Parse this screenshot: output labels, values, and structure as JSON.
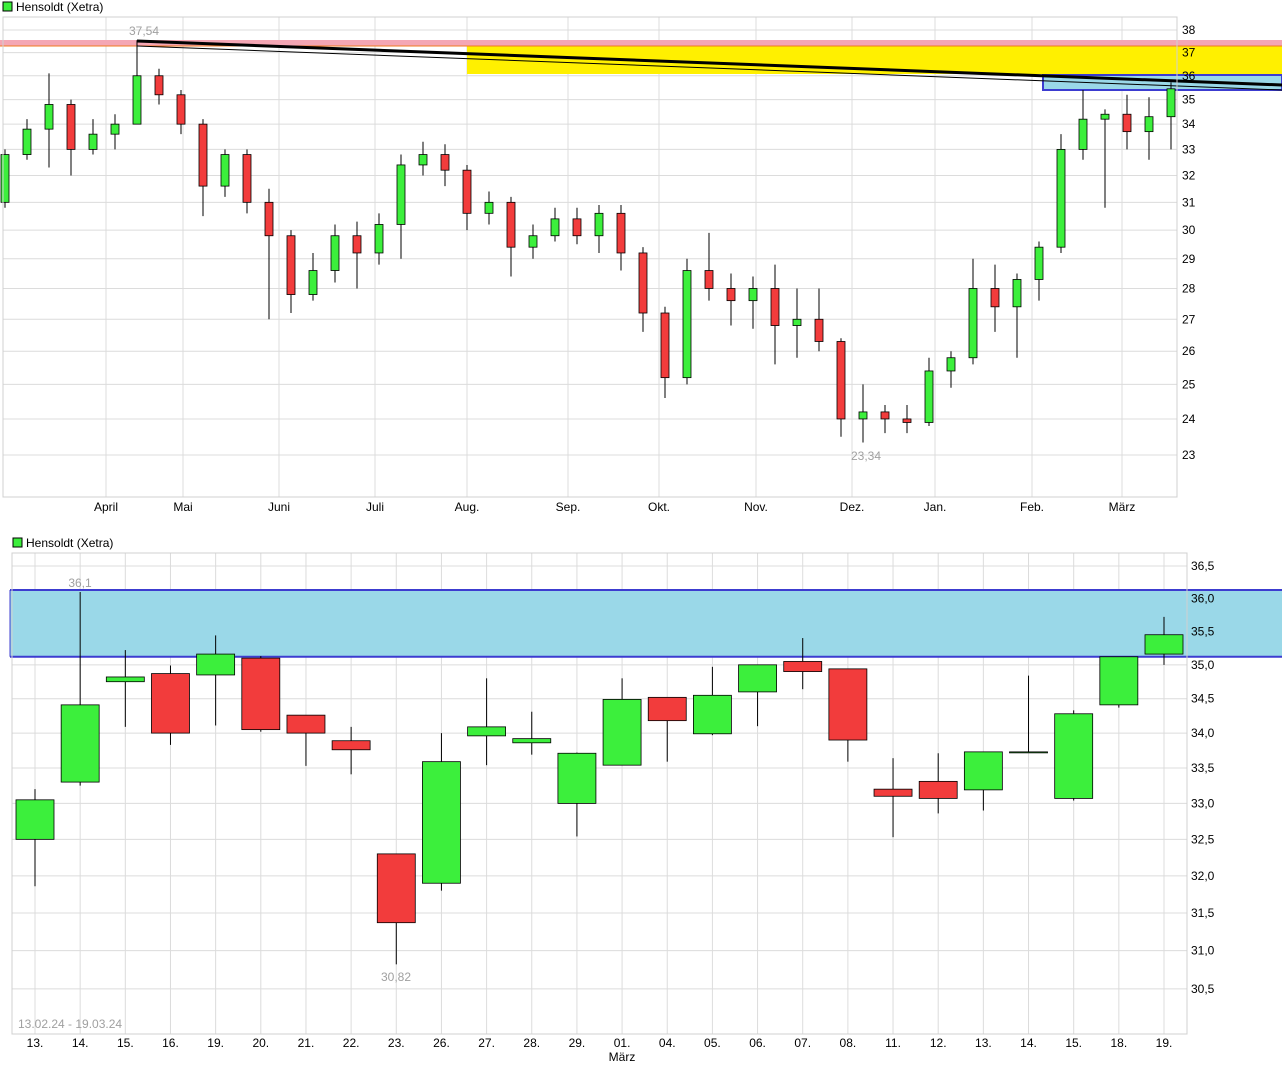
{
  "colors": {
    "up": "#3cef3c",
    "down": "#f23c3c",
    "grid": "#dcdcdc",
    "zone": "#9ad8e8",
    "zone_border": "#3c3cd0",
    "yellow_zone": "#fff000",
    "pink_zone": "#f4a6b4"
  },
  "chart_data": [
    {
      "type": "candlestick",
      "legend": "Hensoldt (Xetra)",
      "scale": "log",
      "ylim": [
        22,
        38.5
      ],
      "yticks": [
        "38",
        "37",
        "36",
        "35",
        "34",
        "33",
        "32",
        "31",
        "30",
        "29",
        "28",
        "27",
        "26",
        "25",
        "24",
        "23"
      ],
      "xticks": [
        "April",
        "Mai",
        "Juni",
        "Juli",
        "Aug.",
        "Sep.",
        "Okt.",
        "Nov.",
        "Dez.",
        "Jan.",
        "Feb.",
        "März"
      ],
      "annotations": {
        "high": "37,54",
        "low": "23,34"
      },
      "grid": true,
      "ohlc": [
        [
          31.0,
          33.0,
          30.8,
          32.8
        ],
        [
          32.8,
          34.2,
          32.6,
          33.8
        ],
        [
          33.8,
          36.1,
          32.3,
          34.8
        ],
        [
          34.8,
          35.0,
          32.0,
          33.0
        ],
        [
          33.0,
          34.2,
          32.8,
          33.6
        ],
        [
          33.6,
          34.4,
          33.0,
          34.0
        ],
        [
          34.0,
          37.54,
          34.0,
          36.0
        ],
        [
          36.0,
          36.3,
          34.8,
          35.2
        ],
        [
          35.2,
          35.4,
          33.6,
          34.0
        ],
        [
          34.0,
          34.2,
          30.5,
          31.6
        ],
        [
          31.6,
          33.0,
          31.2,
          32.8
        ],
        [
          32.8,
          33.0,
          30.6,
          31.0
        ],
        [
          31.0,
          31.5,
          27.0,
          29.8
        ],
        [
          29.8,
          30.0,
          27.2,
          27.8
        ],
        [
          27.8,
          29.2,
          27.6,
          28.6
        ],
        [
          28.6,
          30.2,
          28.2,
          29.8
        ],
        [
          29.8,
          30.3,
          28.0,
          29.2
        ],
        [
          29.2,
          30.6,
          28.8,
          30.2
        ],
        [
          30.2,
          32.8,
          29.0,
          32.4
        ],
        [
          32.4,
          33.3,
          32.0,
          32.8
        ],
        [
          32.8,
          33.2,
          31.6,
          32.2
        ],
        [
          32.2,
          32.4,
          30.0,
          30.6
        ],
        [
          30.6,
          31.4,
          30.2,
          31.0
        ],
        [
          31.0,
          31.2,
          28.4,
          29.4
        ],
        [
          29.4,
          30.2,
          29.0,
          29.8
        ],
        [
          29.8,
          30.8,
          29.6,
          30.4
        ],
        [
          30.4,
          30.8,
          29.5,
          29.8
        ],
        [
          29.8,
          30.9,
          29.2,
          30.6
        ],
        [
          30.6,
          30.9,
          28.6,
          29.2
        ],
        [
          29.2,
          29.4,
          26.6,
          27.2
        ],
        [
          27.2,
          27.4,
          24.6,
          25.2
        ],
        [
          25.2,
          29.0,
          25.0,
          28.6
        ],
        [
          28.6,
          29.9,
          27.6,
          28.0
        ],
        [
          28.0,
          28.5,
          26.8,
          27.6
        ],
        [
          27.6,
          28.4,
          26.7,
          28.0
        ],
        [
          28.0,
          28.8,
          25.6,
          26.8
        ],
        [
          26.8,
          28.0,
          25.8,
          27.0
        ],
        [
          27.0,
          28.0,
          26.0,
          26.3
        ],
        [
          26.3,
          26.4,
          23.5,
          24.0
        ],
        [
          24.0,
          25.0,
          23.34,
          24.2
        ],
        [
          24.2,
          24.4,
          23.6,
          24.0
        ],
        [
          24.0,
          24.4,
          23.6,
          23.9
        ],
        [
          23.9,
          25.8,
          23.8,
          25.4
        ],
        [
          25.4,
          26.0,
          24.9,
          25.8
        ],
        [
          25.8,
          29.0,
          25.6,
          28.0
        ],
        [
          28.0,
          28.8,
          26.6,
          27.4
        ],
        [
          27.4,
          28.5,
          25.8,
          28.3
        ],
        [
          28.3,
          29.6,
          27.6,
          29.4
        ],
        [
          29.4,
          33.6,
          29.2,
          33.0
        ],
        [
          33.0,
          35.4,
          32.6,
          34.2
        ],
        [
          34.2,
          34.6,
          30.8,
          34.4
        ],
        [
          34.4,
          35.2,
          33.0,
          33.7
        ],
        [
          33.7,
          35.1,
          32.6,
          34.3
        ],
        [
          34.3,
          35.72,
          33.0,
          35.45
        ]
      ]
    },
    {
      "type": "candlestick",
      "legend": "Hensoldt (Xetra)",
      "scale": "log",
      "ylim": [
        30.0,
        36.7
      ],
      "yticks": [
        "36,5",
        "36,0",
        "35,5",
        "35,0",
        "34,5",
        "34,0",
        "33,5",
        "33,0",
        "32,5",
        "32,0",
        "31,5",
        "31,0",
        "30,5"
      ],
      "ytick_values": [
        36.5,
        36.0,
        35.5,
        35.0,
        34.5,
        34.0,
        33.5,
        33.0,
        32.5,
        32.0,
        31.5,
        31.0,
        30.5
      ],
      "range_label": "13.02.24 - 19.03.24",
      "month_label": "März",
      "annotations": {
        "high": "36,1",
        "low": "30,82"
      },
      "zone": [
        35.12,
        36.13
      ],
      "grid": true,
      "categories": [
        "13.",
        "14.",
        "15.",
        "16.",
        "19.",
        "20.",
        "21.",
        "22.",
        "23.",
        "26.",
        "27.",
        "28.",
        "29.",
        "01.",
        "04.",
        "05.",
        "06.",
        "07.",
        "08.",
        "11.",
        "12.",
        "13.",
        "14.",
        "15.",
        "18.",
        "19."
      ],
      "ohlc": [
        [
          32.5,
          33.2,
          31.86,
          33.05
        ],
        [
          33.3,
          36.1,
          33.25,
          34.41
        ],
        [
          34.75,
          35.22,
          34.09,
          34.82
        ],
        [
          34.87,
          34.99,
          33.83,
          34.0
        ],
        [
          34.85,
          35.44,
          34.11,
          35.16
        ],
        [
          35.1,
          35.13,
          34.02,
          34.05
        ],
        [
          34.26,
          34.26,
          33.53,
          34.0
        ],
        [
          33.89,
          34.09,
          33.41,
          33.76
        ],
        [
          32.3,
          32.3,
          30.82,
          31.37
        ],
        [
          31.9,
          34.0,
          31.8,
          33.59
        ],
        [
          33.96,
          34.8,
          33.54,
          34.09
        ],
        [
          33.86,
          34.31,
          33.69,
          33.92
        ],
        [
          33.0,
          33.72,
          32.54,
          33.71
        ],
        [
          33.54,
          34.8,
          33.54,
          34.49
        ],
        [
          34.52,
          34.52,
          33.59,
          34.18
        ],
        [
          33.99,
          34.97,
          33.97,
          34.55
        ],
        [
          34.6,
          35.0,
          34.1,
          35.0
        ],
        [
          35.05,
          35.4,
          34.64,
          34.9
        ],
        [
          34.94,
          34.94,
          33.59,
          33.9
        ],
        [
          33.2,
          33.64,
          32.53,
          33.1
        ],
        [
          33.31,
          33.71,
          32.86,
          33.07
        ],
        [
          33.19,
          33.73,
          32.9,
          33.73
        ],
        [
          33.73,
          34.84,
          33.73,
          33.73
        ],
        [
          33.07,
          34.33,
          33.04,
          34.28
        ],
        [
          34.41,
          35.12,
          34.37,
          35.12
        ],
        [
          35.16,
          35.72,
          35.0,
          35.45
        ]
      ]
    }
  ]
}
